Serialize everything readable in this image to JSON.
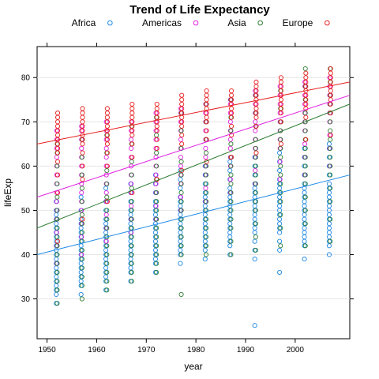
{
  "chart_data": {
    "type": "scatter",
    "title": "Trend of Life Expectancy",
    "xlabel": "year",
    "ylabel": "lifeExp",
    "xlim": [
      1948,
      2011
    ],
    "ylim": [
      21,
      87
    ],
    "x_ticks": [
      1950,
      1960,
      1970,
      1980,
      1990,
      2000
    ],
    "y_ticks": [
      30,
      40,
      50,
      60,
      70,
      80
    ],
    "grid": "horizontal",
    "legend_position": "top",
    "series": [
      {
        "name": "Africa",
        "color": "#1E88E5",
        "regression": {
          "x": [
            1948,
            2011
          ],
          "y": [
            40,
            58
          ]
        },
        "points": [
          {
            "x": 1952,
            "y": [
              29,
              31,
              32,
              33,
              34,
              35,
              36,
              37,
              38,
              39,
              40,
              41,
              42,
              43,
              44,
              45,
              46,
              47,
              48,
              49,
              50,
              52
            ]
          },
          {
            "x": 1957,
            "y": [
              31,
              33,
              34,
              35,
              36,
              37,
              38,
              39,
              40,
              41,
              42,
              43,
              44,
              45,
              46,
              47,
              48,
              50,
              53
            ]
          },
          {
            "x": 1962,
            "y": [
              32,
              34,
              35,
              36,
              37,
              38,
              39,
              40,
              41,
              42,
              43,
              44,
              45,
              46,
              47,
              48,
              50,
              52,
              55
            ]
          },
          {
            "x": 1967,
            "y": [
              34,
              36,
              37,
              38,
              39,
              40,
              41,
              42,
              43,
              44,
              45,
              46,
              47,
              48,
              49,
              50,
              52,
              54,
              56
            ]
          },
          {
            "x": 1972,
            "y": [
              36,
              38,
              39,
              40,
              41,
              42,
              43,
              44,
              45,
              46,
              47,
              48,
              49,
              50,
              51,
              52,
              54,
              56,
              58
            ]
          },
          {
            "x": 1977,
            "y": [
              38,
              40,
              41,
              42,
              43,
              44,
              45,
              46,
              47,
              48,
              49,
              50,
              51,
              52,
              53,
              55,
              57,
              59
            ]
          },
          {
            "x": 1982,
            "y": [
              39,
              41,
              42,
              43,
              44,
              45,
              46,
              47,
              48,
              49,
              50,
              51,
              52,
              53,
              54,
              56,
              58,
              60
            ]
          },
          {
            "x": 1987,
            "y": [
              40,
              42,
              43,
              44,
              45,
              46,
              47,
              48,
              49,
              50,
              51,
              52,
              53,
              54,
              55,
              57,
              59,
              61
            ]
          },
          {
            "x": 1992,
            "y": [
              24,
              39,
              41,
              43,
              45,
              46,
              47,
              48,
              49,
              50,
              51,
              52,
              53,
              54,
              55,
              56,
              58,
              60,
              62
            ]
          },
          {
            "x": 1997,
            "y": [
              36,
              41,
              43,
              45,
              46,
              47,
              48,
              49,
              50,
              51,
              52,
              53,
              54,
              55,
              56,
              57,
              59,
              61,
              63
            ]
          },
          {
            "x": 2002,
            "y": [
              39,
              42,
              43,
              44,
              45,
              46,
              47,
              48,
              49,
              50,
              51,
              52,
              53,
              54,
              55,
              56,
              58,
              60,
              62,
              64
            ]
          },
          {
            "x": 2007,
            "y": [
              40,
              42,
              43,
              44,
              45,
              46,
              47,
              48,
              49,
              50,
              51,
              52,
              53,
              54,
              55,
              56,
              58,
              60,
              62,
              64,
              65
            ]
          }
        ]
      },
      {
        "name": "Americas",
        "color": "#E020E0",
        "regression": {
          "x": [
            1948,
            2011
          ],
          "y": [
            53,
            76
          ]
        },
        "points": [
          {
            "x": 1952,
            "y": [
              38,
              42,
              45,
              48,
              50,
              52,
              54,
              56,
              58,
              60,
              62,
              64,
              66,
              68
            ]
          },
          {
            "x": 1957,
            "y": [
              40,
              44,
              47,
              50,
              52,
              54,
              56,
              58,
              60,
              62,
              64,
              66,
              68,
              69
            ]
          },
          {
            "x": 1962,
            "y": [
              43,
              46,
              49,
              52,
              54,
              56,
              58,
              60,
              62,
              64,
              66,
              68,
              70
            ]
          },
          {
            "x": 1967,
            "y": [
              45,
              48,
              51,
              54,
              56,
              58,
              60,
              62,
              64,
              66,
              68,
              70
            ]
          },
          {
            "x": 1972,
            "y": [
              48,
              51,
              54,
              56,
              58,
              60,
              62,
              64,
              66,
              68,
              70,
              72
            ]
          },
          {
            "x": 1977,
            "y": [
              50,
              53,
              56,
              58,
              60,
              62,
              64,
              66,
              68,
              70,
              72,
              73
            ]
          },
          {
            "x": 1982,
            "y": [
              52,
              55,
              58,
              60,
              62,
              64,
              66,
              68,
              70,
              72,
              74
            ]
          },
          {
            "x": 1987,
            "y": [
              54,
              57,
              60,
              62,
              64,
              66,
              68,
              70,
              72,
              74,
              75
            ]
          },
          {
            "x": 1992,
            "y": [
              56,
              59,
              62,
              64,
              66,
              68,
              70,
              72,
              74,
              76,
              77
            ]
          },
          {
            "x": 1997,
            "y": [
              57,
              61,
              64,
              66,
              68,
              70,
              72,
              74,
              76,
              78
            ]
          },
          {
            "x": 2002,
            "y": [
              58,
              62,
              65,
              68,
              70,
              72,
              74,
              76,
              78,
              79
            ]
          },
          {
            "x": 2007,
            "y": [
              60,
              64,
              67,
              70,
              72,
              74,
              76,
              78,
              80
            ]
          }
        ]
      },
      {
        "name": "Asia",
        "color": "#2E7D32",
        "regression": {
          "x": [
            1948,
            2011
          ],
          "y": [
            46,
            74
          ]
        },
        "points": [
          {
            "x": 1952,
            "y": [
              29,
              32,
              34,
              36,
              38,
              40,
              42,
              44,
              46,
              48,
              50,
              53,
              56,
              60,
              63,
              65
            ]
          },
          {
            "x": 1957,
            "y": [
              30,
              33,
              35,
              37,
              39,
              41,
              43,
              45,
              47,
              49,
              52,
              55,
              58,
              62,
              66
            ]
          },
          {
            "x": 1962,
            "y": [
              32,
              34,
              36,
              38,
              40,
              42,
              44,
              46,
              48,
              50,
              53,
              56,
              59,
              63,
              67
            ]
          },
          {
            "x": 1967,
            "y": [
              34,
              36,
              38,
              40,
              42,
              44,
              46,
              48,
              50,
              52,
              55,
              58,
              61,
              65,
              69
            ]
          },
          {
            "x": 1972,
            "y": [
              36,
              38,
              40,
              42,
              44,
              46,
              48,
              50,
              52,
              54,
              57,
              60,
              63,
              67,
              71
            ]
          },
          {
            "x": 1977,
            "y": [
              31,
              40,
              42,
              44,
              46,
              48,
              50,
              52,
              54,
              56,
              58,
              61,
              64,
              68,
              72
            ]
          },
          {
            "x": 1982,
            "y": [
              40,
              42,
              44,
              46,
              48,
              50,
              52,
              54,
              56,
              58,
              60,
              63,
              66,
              70,
              74
            ]
          },
          {
            "x": 1987,
            "y": [
              40,
              43,
              46,
              48,
              50,
              52,
              54,
              56,
              58,
              60,
              62,
              65,
              68,
              71,
              75
            ]
          },
          {
            "x": 1992,
            "y": [
              41,
              44,
              47,
              50,
              52,
              54,
              56,
              58,
              60,
              62,
              64,
              66,
              69,
              72,
              76
            ]
          },
          {
            "x": 1997,
            "y": [
              42,
              46,
              49,
              52,
              54,
              56,
              58,
              60,
              62,
              64,
              66,
              68,
              70,
              73,
              77
            ]
          },
          {
            "x": 2002,
            "y": [
              42,
              47,
              50,
              53,
              56,
              58,
              60,
              62,
              64,
              66,
              68,
              70,
              72,
              75,
              78,
              82
            ]
          },
          {
            "x": 2007,
            "y": [
              43,
              48,
              52,
              55,
              58,
              60,
              62,
              64,
              66,
              68,
              70,
              72,
              74,
              76,
              79,
              82
            ]
          }
        ]
      },
      {
        "name": "Europe",
        "color": "#E82020",
        "regression": {
          "x": [
            1948,
            2011
          ],
          "y": [
            65,
            79
          ]
        },
        "points": [
          {
            "x": 1952,
            "y": [
              43,
              54,
              58,
              61,
              63,
              64,
              65,
              66,
              67,
              68,
              69,
              70,
              71,
              72
            ]
          },
          {
            "x": 1957,
            "y": [
              48,
              57,
              60,
              63,
              65,
              66,
              67,
              68,
              69,
              70,
              71,
              72,
              73
            ]
          },
          {
            "x": 1962,
            "y": [
              52,
              60,
              63,
              65,
              66,
              67,
              68,
              69,
              70,
              71,
              72,
              73
            ]
          },
          {
            "x": 1967,
            "y": [
              54,
              62,
              65,
              67,
              68,
              69,
              70,
              71,
              72,
              73,
              74
            ]
          },
          {
            "x": 1972,
            "y": [
              57,
              64,
              66,
              68,
              69,
              70,
              71,
              72,
              73,
              74
            ]
          },
          {
            "x": 1977,
            "y": [
              59,
              65,
              67,
              69,
              70,
              71,
              72,
              73,
              74,
              75,
              76
            ]
          },
          {
            "x": 1982,
            "y": [
              61,
              66,
              68,
              70,
              71,
              72,
              73,
              74,
              75,
              76,
              77
            ]
          },
          {
            "x": 1987,
            "y": [
              62,
              67,
              69,
              71,
              72,
              73,
              74,
              75,
              76,
              77
            ]
          },
          {
            "x": 1992,
            "y": [
              63,
              69,
              71,
              72,
              73,
              74,
              75,
              76,
              77,
              78,
              79
            ]
          },
          {
            "x": 1997,
            "y": [
              65,
              70,
              72,
              73,
              74,
              75,
              76,
              77,
              78,
              79,
              80
            ]
          },
          {
            "x": 2002,
            "y": [
              66,
              71,
              73,
              74,
              75,
              76,
              77,
              78,
              79,
              80,
              81
            ]
          },
          {
            "x": 2007,
            "y": [
              67,
              72,
              74,
              75,
              76,
              77,
              78,
              79,
              80,
              81,
              82
            ]
          }
        ]
      }
    ]
  }
}
